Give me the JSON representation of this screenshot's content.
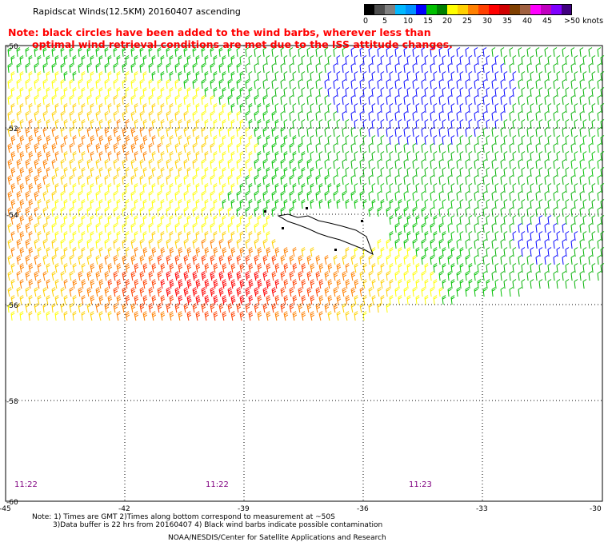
{
  "title": "Rapidscat Winds(12.5KM) 20160407 ascending",
  "note_line1": "Note: black circles have been added to the wind barbs, wherever less than",
  "note_line2": "optimal wind retrieval conditions are met due to the ISS attitude changes.",
  "colorbar": {
    "labels": [
      "0",
      "5",
      "10",
      "15",
      "20",
      "25",
      "30",
      "35",
      "40",
      "45",
      ">50 knots"
    ],
    "colors": [
      "#000000",
      "#4d4d4d",
      "#808080",
      "#00b8ff",
      "#0090ff",
      "#0000ff",
      "#00c000",
      "#008000",
      "#ffff00",
      "#ffd000",
      "#ff8000",
      "#ff4000",
      "#ff0000",
      "#d00000",
      "#804000",
      "#a06040",
      "#ff00ff",
      "#c000c0",
      "#8000ff",
      "#400080"
    ]
  },
  "axes": {
    "lat_labels": [
      "-50",
      "-52",
      "-54",
      "-56",
      "-58",
      "-60"
    ],
    "lon_labels": [
      "-45",
      "-42",
      "-39",
      "-36",
      "-33",
      "-30"
    ]
  },
  "time_labels": [
    "11:22",
    "11:22",
    "11:23"
  ],
  "colors": {
    "time_label": "#800080",
    "note_red": "#ff0000",
    "grid": "#000000",
    "land": "#ffffff"
  },
  "footer": {
    "line1": "Note: 1) Times are GMT 2)Times along bottom correspond to measurement at ~50S",
    "line2": "3)Data buffer is 22 hrs from 20160407 4) Black wind barbs indicate possible contamination",
    "line3": "NOAA/NESDIS/Center for Satellite Applications and Research"
  }
}
